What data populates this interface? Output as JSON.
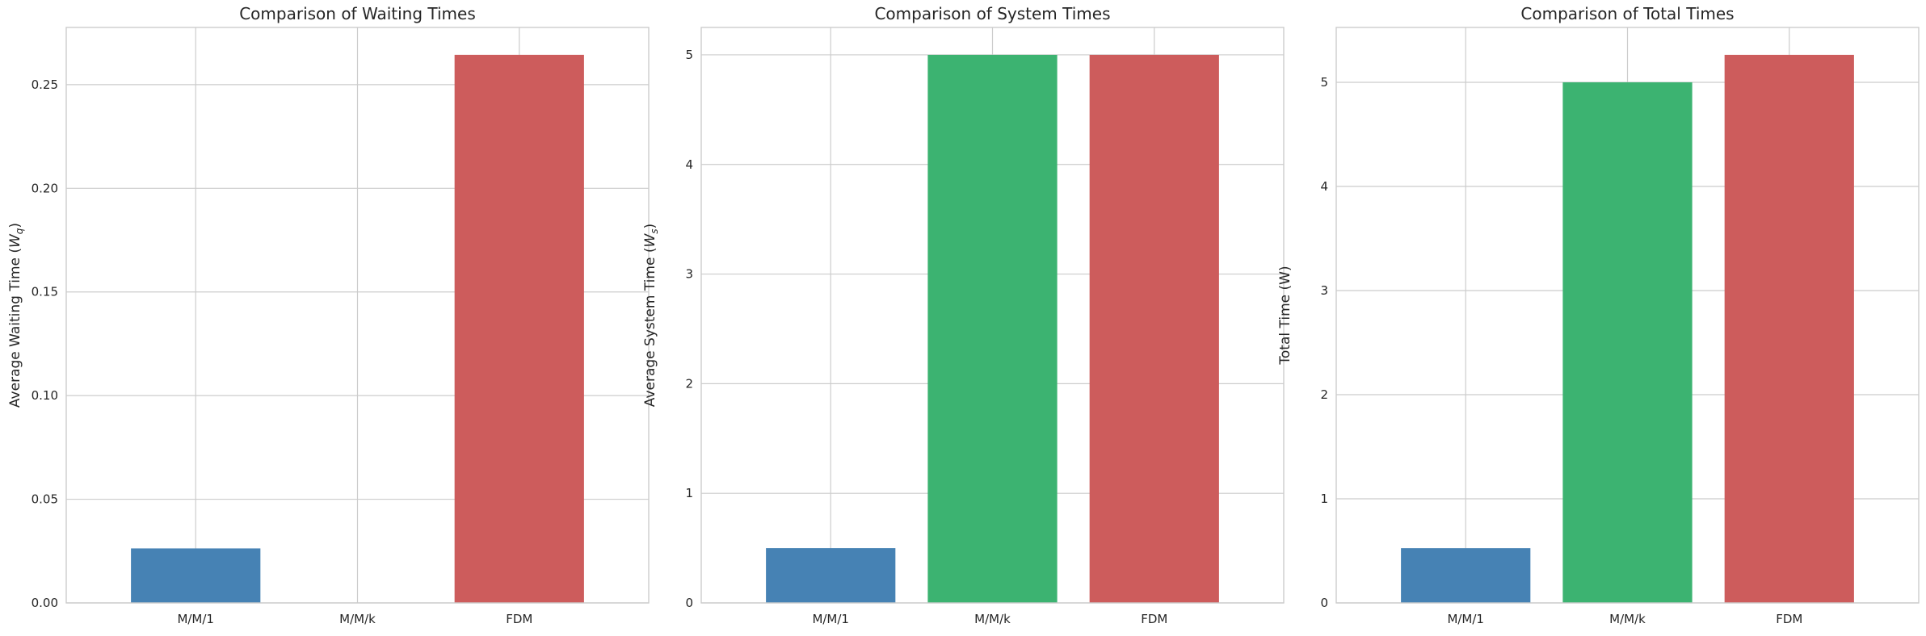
{
  "chart_data": [
    {
      "type": "bar",
      "title": "Comparison of Waiting Times",
      "ylabel": "Average Waiting Time (",
      "ylabel_var": "W",
      "ylabel_sub": "q",
      "ylabel_end": ")",
      "categories": [
        "M/M/1",
        "M/M/k",
        "FDM"
      ],
      "values": [
        0.0263,
        0.0,
        0.2644
      ],
      "colors": [
        "#4682b4",
        "#3cb371",
        "#cd5c5c"
      ],
      "ylim": [
        0,
        0.2776
      ],
      "yticks": [
        0.0,
        0.05,
        0.1,
        0.15,
        0.2,
        0.25
      ],
      "ytick_labels": [
        "0.00",
        "0.05",
        "0.10",
        "0.15",
        "0.20",
        "0.25"
      ],
      "grid": true
    },
    {
      "type": "bar",
      "title": "Comparison of System Times",
      "ylabel": "Average System Time (",
      "ylabel_var": "W",
      "ylabel_sub": "s",
      "ylabel_end": ")",
      "categories": [
        "M/M/1",
        "M/M/k",
        "FDM"
      ],
      "values": [
        0.5,
        5.0,
        5.0
      ],
      "colors": [
        "#4682b4",
        "#3cb371",
        "#cd5c5c"
      ],
      "ylim": [
        0,
        5.25
      ],
      "yticks": [
        0,
        1,
        2,
        3,
        4,
        5
      ],
      "ytick_labels": [
        "0",
        "1",
        "2",
        "3",
        "4",
        "5"
      ],
      "grid": true
    },
    {
      "type": "bar",
      "title": "Comparison of Total Times",
      "ylabel": "Total Time (W)",
      "ylabel_var": "",
      "ylabel_sub": "",
      "ylabel_end": "",
      "categories": [
        "M/M/1",
        "M/M/k",
        "FDM"
      ],
      "values": [
        0.526,
        5.0,
        5.264
      ],
      "colors": [
        "#4682b4",
        "#3cb371",
        "#cd5c5c"
      ],
      "ylim": [
        0,
        5.527
      ],
      "yticks": [
        0,
        1,
        2,
        3,
        4,
        5
      ],
      "ytick_labels": [
        "0",
        "1",
        "2",
        "3",
        "4",
        "5"
      ],
      "grid": true
    }
  ]
}
